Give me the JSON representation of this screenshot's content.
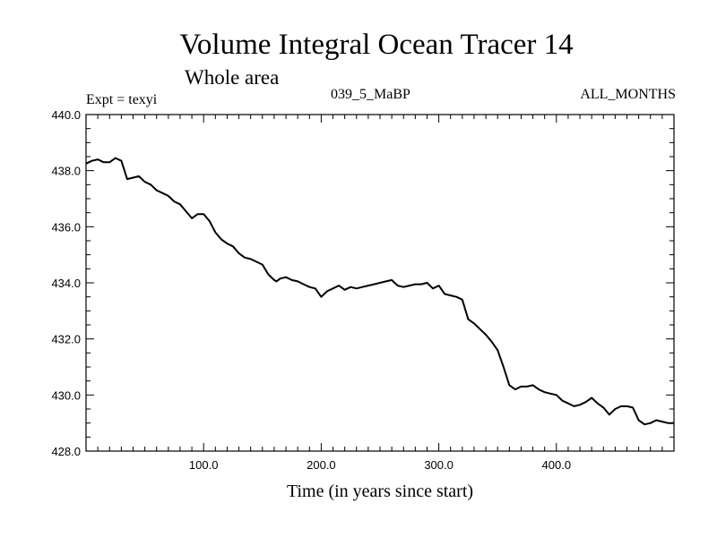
{
  "header": {
    "title": "Volume Integral Ocean Tracer 14",
    "subtitle": "Whole area",
    "left_label": "Expt = texyi",
    "center_label": "039_5_MaBP",
    "right_label": "ALL_MONTHS"
  },
  "chart_data": {
    "type": "line",
    "title": "Volume Integral Ocean Tracer 14",
    "subtitle": "Whole area",
    "xlabel": "Time (in years since start)",
    "ylabel": "",
    "xlim": [
      0,
      500
    ],
    "ylim": [
      428.0,
      440.0
    ],
    "x_ticks": [
      100,
      200,
      300,
      400
    ],
    "x_tick_labels": [
      "100.0",
      "200.0",
      "300.0",
      "400.0"
    ],
    "y_ticks": [
      428,
      430,
      432,
      434,
      436,
      438,
      440
    ],
    "y_tick_labels": [
      "428.0",
      "430.0",
      "432.0",
      "434.0",
      "436.0",
      "438.0",
      "440.0"
    ],
    "grid": false,
    "legend": "none",
    "line_color": "#000000",
    "series": [
      {
        "x": [
          0,
          5,
          10,
          15,
          20,
          25,
          30,
          35,
          40,
          45,
          50,
          55,
          60,
          65,
          70,
          75,
          80,
          85,
          90,
          95,
          100,
          105,
          110,
          115,
          120,
          125,
          130,
          135,
          140,
          145,
          150,
          155,
          160,
          162,
          165,
          170,
          175,
          180,
          185,
          190,
          195,
          200,
          205,
          210,
          215,
          220,
          225,
          230,
          235,
          240,
          245,
          250,
          255,
          260,
          265,
          270,
          275,
          280,
          285,
          290,
          295,
          300,
          305,
          310,
          315,
          320,
          325,
          330,
          335,
          340,
          345,
          350,
          355,
          360,
          365,
          370,
          375,
          380,
          385,
          390,
          395,
          400,
          405,
          410,
          415,
          420,
          425,
          430,
          435,
          440,
          445,
          450,
          455,
          460,
          465,
          470,
          475,
          480,
          485,
          490,
          495,
          500
        ],
        "y": [
          438.25,
          438.35,
          438.4,
          438.3,
          438.3,
          438.45,
          438.35,
          437.7,
          437.75,
          437.8,
          437.6,
          437.5,
          437.3,
          437.2,
          437.1,
          436.9,
          436.8,
          436.55,
          436.3,
          436.45,
          436.45,
          436.2,
          435.8,
          435.55,
          435.4,
          435.3,
          435.05,
          434.9,
          434.85,
          434.75,
          434.65,
          434.3,
          434.1,
          434.05,
          434.15,
          434.2,
          434.1,
          434.05,
          433.95,
          433.85,
          433.8,
          433.5,
          433.7,
          433.8,
          433.9,
          433.75,
          433.85,
          433.8,
          433.85,
          433.9,
          433.95,
          434.0,
          434.05,
          434.1,
          433.9,
          433.85,
          433.9,
          433.95,
          433.95,
          434.0,
          433.8,
          433.9,
          433.6,
          433.55,
          433.5,
          433.4,
          432.7,
          432.55,
          432.35,
          432.15,
          431.9,
          431.6,
          431.0,
          430.35,
          430.2,
          430.3,
          430.3,
          430.35,
          430.2,
          430.1,
          430.05,
          430.0,
          429.8,
          429.7,
          429.6,
          429.65,
          429.75,
          429.9,
          429.7,
          429.55,
          429.3,
          429.5,
          429.6,
          429.6,
          429.55,
          429.1,
          428.95,
          429.0,
          429.1,
          429.05,
          429.0,
          429.0
        ]
      }
    ]
  }
}
